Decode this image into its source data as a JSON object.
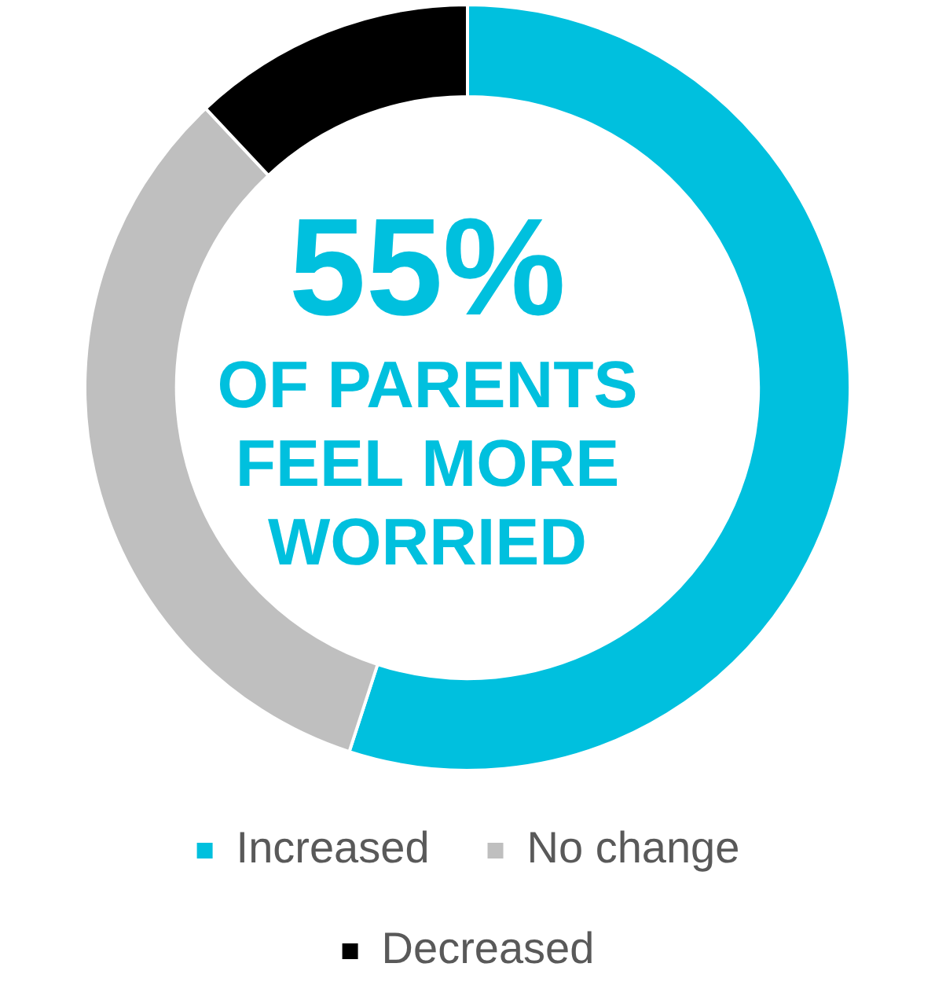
{
  "chart_data": {
    "type": "donut",
    "categories": [
      "Increased",
      "No change",
      "Decreased"
    ],
    "values": [
      55,
      33,
      12
    ],
    "colors": [
      "#00c0de",
      "#bfbfbf",
      "#000000"
    ],
    "legend": "bottom",
    "annotations": [
      "55%",
      "OF PARENTS FEEL MORE WORRIED"
    ]
  }
}
